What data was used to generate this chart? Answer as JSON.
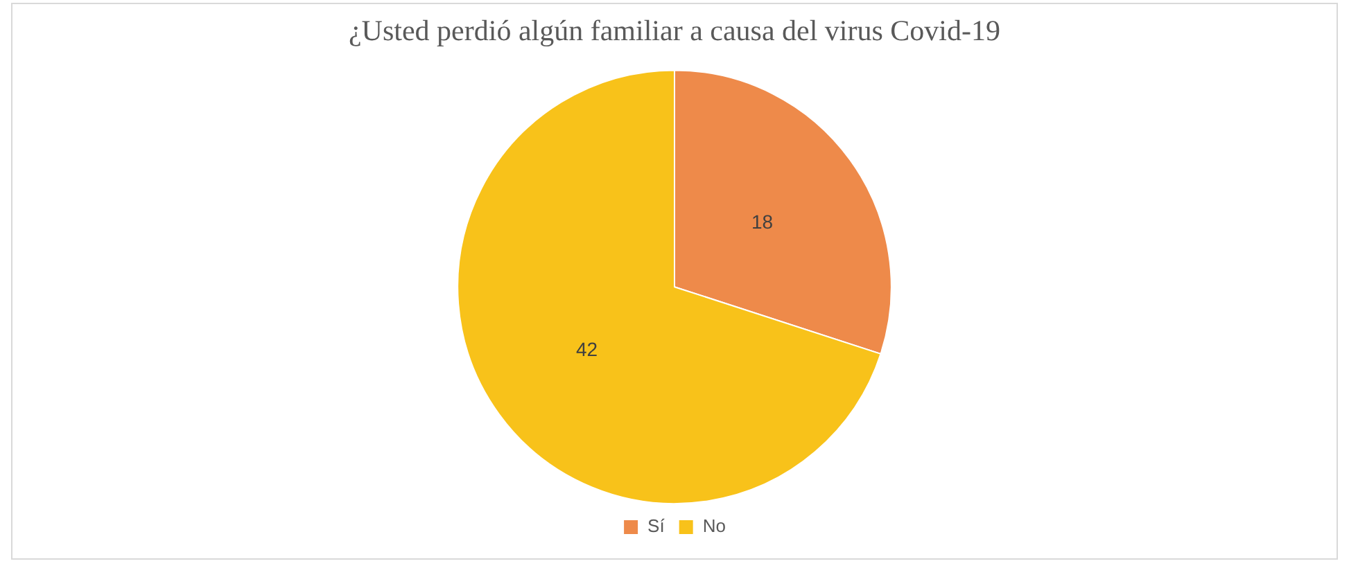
{
  "chart_data": {
    "type": "pie",
    "title": "¿Usted perdió algún familiar a causa del virus Covid-19",
    "categories": [
      "Sí",
      "No"
    ],
    "values": [
      18,
      42
    ],
    "colors": [
      "#ee8a4a",
      "#f8c21a"
    ],
    "data_labels": true,
    "legend": "bottom"
  }
}
